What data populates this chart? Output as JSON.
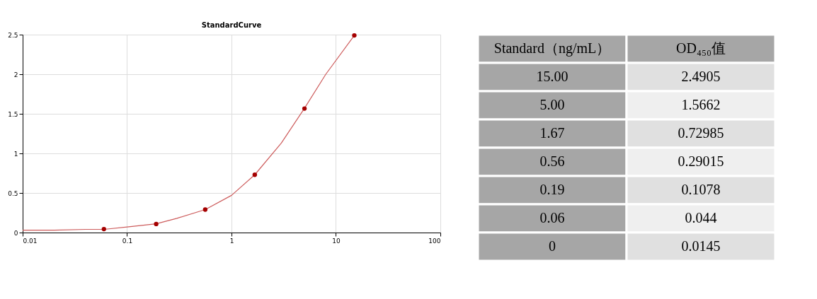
{
  "chart_data": [
    {
      "type": "scatter",
      "title": "StandardCurve",
      "log": "x",
      "xlim": [
        0.01,
        100
      ],
      "xticks": [
        0.01,
        0.1,
        1,
        10,
        100
      ],
      "ylim": [
        0,
        2.5
      ],
      "yticks": [
        0,
        0.5,
        1,
        1.5,
        2,
        2.5
      ],
      "grid": true,
      "series": [
        {
          "type": "line",
          "marker": "none",
          "color": "#cd5c5c",
          "x": [
            0.01,
            0.02,
            0.04,
            0.06,
            0.1,
            0.19,
            0.3,
            0.56,
            1,
            1.67,
            3,
            5,
            8,
            15
          ],
          "values": [
            0.03,
            0.03,
            0.04,
            0.04,
            0.07,
            0.11,
            0.18,
            0.29,
            0.47,
            0.73,
            1.13,
            1.57,
            2.0,
            2.49
          ]
        },
        {
          "type": "scatter",
          "marker": "circle",
          "color": "#a50000",
          "x": [
            0.06,
            0.19,
            0.56,
            1.67,
            5,
            15
          ],
          "values": [
            0.044,
            0.1078,
            0.29015,
            0.72985,
            1.5662,
            2.4905
          ]
        }
      ]
    },
    {
      "type": "other",
      "xlabel": "Standard（ng/mL）",
      "ylabel": "OD₄₅₀值",
      "categories": [
        "15.00",
        "5.00",
        "1.67",
        "0.56",
        "0.19",
        "0.06",
        "0"
      ],
      "value_labels": [
        "2.4905",
        "1.5662",
        "0.72985",
        "0.29015",
        "0.1078",
        "0.044",
        "0.0145"
      ]
    }
  ]
}
